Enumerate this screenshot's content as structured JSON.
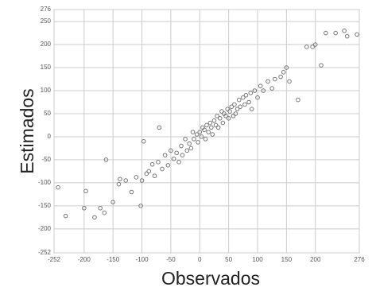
{
  "chart_data": {
    "type": "scatter",
    "xlabel": "Observados",
    "ylabel": "Estimados",
    "xlim": [
      -252,
      276
    ],
    "ylim": [
      -252,
      276
    ],
    "xticks": [
      -252,
      -200,
      -150,
      -100,
      -50,
      0,
      50,
      100,
      150,
      200,
      276
    ],
    "yticks": [
      -252,
      -200,
      -150,
      -100,
      -50,
      0,
      50,
      100,
      150,
      200,
      250,
      276
    ],
    "grid": true,
    "color": "#777777",
    "x": [
      -245,
      -232,
      -200,
      -197,
      -182,
      -172,
      -165,
      -162,
      -150,
      -140,
      -138,
      -128,
      -118,
      -110,
      -102,
      -100,
      -97,
      -92,
      -88,
      -82,
      -78,
      -72,
      -70,
      -65,
      -60,
      -55,
      -50,
      -45,
      -40,
      -36,
      -32,
      -30,
      -25,
      -22,
      -18,
      -15,
      -12,
      -10,
      -5,
      -3,
      0,
      3,
      5,
      8,
      10,
      12,
      15,
      18,
      20,
      22,
      25,
      28,
      30,
      32,
      35,
      38,
      40,
      42,
      45,
      48,
      50,
      52,
      55,
      58,
      60,
      62,
      65,
      68,
      70,
      75,
      78,
      80,
      85,
      88,
      90,
      95,
      100,
      105,
      110,
      118,
      125,
      130,
      140,
      145,
      150,
      155,
      170,
      185,
      195,
      200,
      210,
      218,
      235,
      255,
      250,
      272
    ],
    "values": [
      -110,
      -172,
      -155,
      -118,
      -175,
      -155,
      -165,
      -50,
      -142,
      -103,
      -92,
      -95,
      -120,
      -88,
      -150,
      -95,
      -10,
      -80,
      -75,
      -60,
      -85,
      -55,
      20,
      -70,
      -40,
      -62,
      -30,
      -48,
      -35,
      -55,
      -20,
      -40,
      -5,
      -30,
      -15,
      -25,
      10,
      -5,
      5,
      -12,
      10,
      0,
      20,
      15,
      -5,
      25,
      10,
      30,
      20,
      5,
      35,
      25,
      45,
      20,
      40,
      55,
      30,
      50,
      45,
      60,
      40,
      55,
      65,
      45,
      70,
      50,
      60,
      80,
      65,
      85,
      70,
      90,
      75,
      95,
      60,
      100,
      85,
      110,
      100,
      120,
      105,
      125,
      130,
      140,
      150,
      120,
      80,
      195,
      195,
      200,
      155,
      225,
      225,
      218,
      230,
      222
    ]
  }
}
